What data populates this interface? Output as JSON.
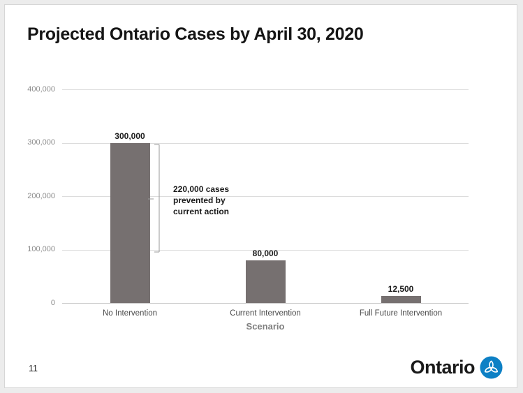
{
  "page": {
    "page_number": "11",
    "logo": {
      "wordmark": "Ontario",
      "trillium_color": "#0d80c5"
    }
  },
  "chart_data": {
    "type": "bar",
    "title": "Projected Ontario Cases by April 30, 2020",
    "xlabel": "Scenario",
    "ylabel": "",
    "categories": [
      "No Intervention",
      "Current Intervention",
      "Full Future Intervention"
    ],
    "values": [
      300000,
      80000,
      12500
    ],
    "value_labels": [
      "300,000",
      "80,000",
      "12,500"
    ],
    "ylim": [
      0,
      400000
    ],
    "yticks": {
      "values": [
        0,
        100000,
        200000,
        300000,
        400000
      ],
      "labels": [
        "0",
        "100,000",
        "200,000",
        "300,000",
        "400,000"
      ]
    },
    "grid": true,
    "legend": false,
    "bar_color": "#767070",
    "annotation": {
      "text": "220,000 cases\nprevented by\ncurrent action",
      "from_value": 300000,
      "to_value": 80000
    }
  }
}
